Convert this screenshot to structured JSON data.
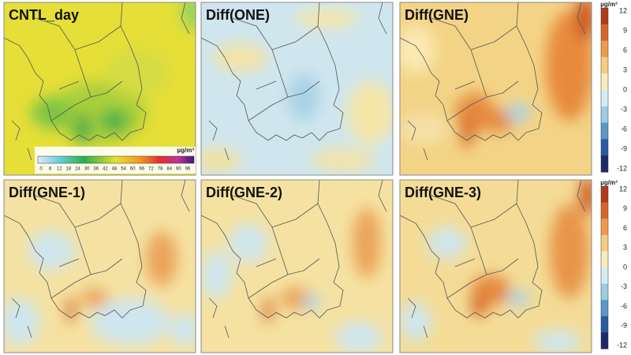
{
  "panels": [
    {
      "title": "CNTL_day"
    },
    {
      "title": "Diff(ONE)"
    },
    {
      "title": "Diff(GNE)"
    },
    {
      "title": "Diff(GNE-1)"
    },
    {
      "title": "Diff(GNE-2)"
    },
    {
      "title": "Diff(GNE-3)"
    }
  ],
  "cntl_colorbar": {
    "unit": "µg/m³",
    "ticks": [
      0,
      6,
      12,
      18,
      24,
      30,
      36,
      42,
      48,
      54,
      60,
      66,
      72,
      78,
      84,
      90,
      96
    ]
  },
  "diff_colorbars": [
    {
      "unit": "µg/m³",
      "ticks": [
        12,
        9,
        6,
        3,
        0,
        -3,
        -6,
        -9,
        -12
      ]
    },
    {
      "unit": "µg/m³",
      "ticks": [
        12,
        9,
        6,
        3,
        0,
        -3,
        -6,
        -9,
        -12
      ]
    }
  ]
}
